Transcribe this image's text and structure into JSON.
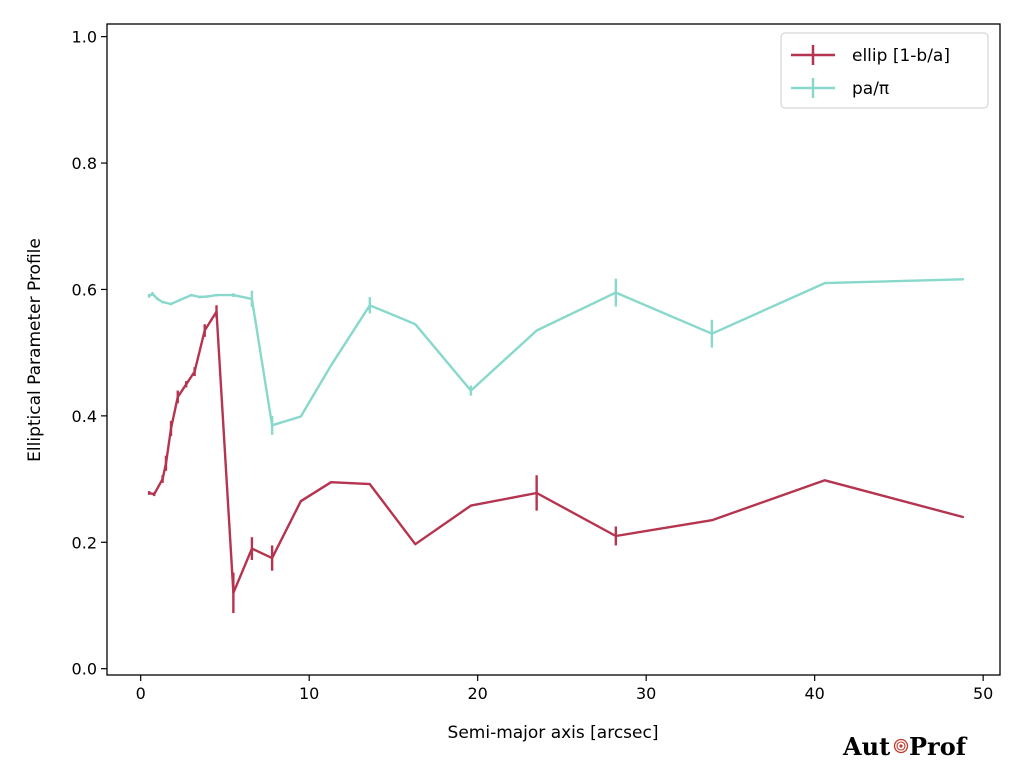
{
  "chart_data": {
    "type": "line",
    "title": "",
    "xlabel": "Semi-major axis [arcsec]",
    "ylabel": "Elliptical Parameter Profile",
    "xlim": [
      -2,
      51
    ],
    "ylim": [
      -0.01,
      1.02
    ],
    "xticks": [
      0,
      10,
      20,
      30,
      40,
      50
    ],
    "yticks": [
      0.0,
      0.2,
      0.4,
      0.6,
      0.8,
      1.0
    ],
    "xtick_labels": [
      "0",
      "10",
      "20",
      "30",
      "40",
      "50"
    ],
    "ytick_labels": [
      "0.0",
      "0.2",
      "0.4",
      "0.6",
      "0.8",
      "1.0"
    ],
    "grid": false,
    "legend_position": "top-right",
    "series": [
      {
        "name": "ellip [1-b/a]",
        "color": "#b5344f",
        "x": [
          0.5,
          0.8,
          1.3,
          1.5,
          1.8,
          2.2,
          2.7,
          3.2,
          3.8,
          4.5,
          5.5,
          6.6,
          7.8,
          9.5,
          11.3,
          13.6,
          16.3,
          19.6,
          23.5,
          28.2,
          33.9,
          40.6,
          48.8
        ],
        "y": [
          0.278,
          0.276,
          0.3,
          0.325,
          0.38,
          0.43,
          0.45,
          0.47,
          0.535,
          0.565,
          0.12,
          0.19,
          0.175,
          0.265,
          0.295,
          0.292,
          0.197,
          0.258,
          0.278,
          0.21,
          0.235,
          0.298,
          0.24
        ],
        "err": [
          0.003,
          0.003,
          0.006,
          0.012,
          0.012,
          0.01,
          0.005,
          0.007,
          0.01,
          0.01,
          0.032,
          0.018,
          0.02,
          0,
          0,
          0,
          0,
          0,
          0.028,
          0.015,
          0,
          0,
          0
        ]
      },
      {
        "name": "pa/π",
        "color": "#88d8cc",
        "x": [
          0.5,
          0.7,
          1.0,
          1.3,
          1.8,
          2.3,
          3.0,
          3.5,
          4.0,
          4.5,
          5.5,
          6.6,
          7.8,
          9.5,
          11.3,
          13.6,
          16.3,
          19.6,
          23.5,
          28.2,
          33.9,
          40.6,
          48.8
        ],
        "y": [
          0.59,
          0.593,
          0.585,
          0.58,
          0.577,
          0.583,
          0.591,
          0.588,
          0.589,
          0.591,
          0.591,
          0.585,
          0.385,
          0.399,
          0.48,
          0.575,
          0.545,
          0.44,
          0.535,
          0.595,
          0.53,
          0.61,
          0.616
        ],
        "err": [
          0.003,
          0.003,
          0.002,
          0.002,
          0.002,
          0.002,
          0.002,
          0.002,
          0.002,
          0.002,
          0.003,
          0.013,
          0.015,
          0,
          0,
          0.013,
          0,
          0.008,
          0,
          0.022,
          0.022,
          0,
          0
        ]
      }
    ]
  },
  "logo": {
    "text_left": "Aut",
    "text_right": "Prof"
  }
}
